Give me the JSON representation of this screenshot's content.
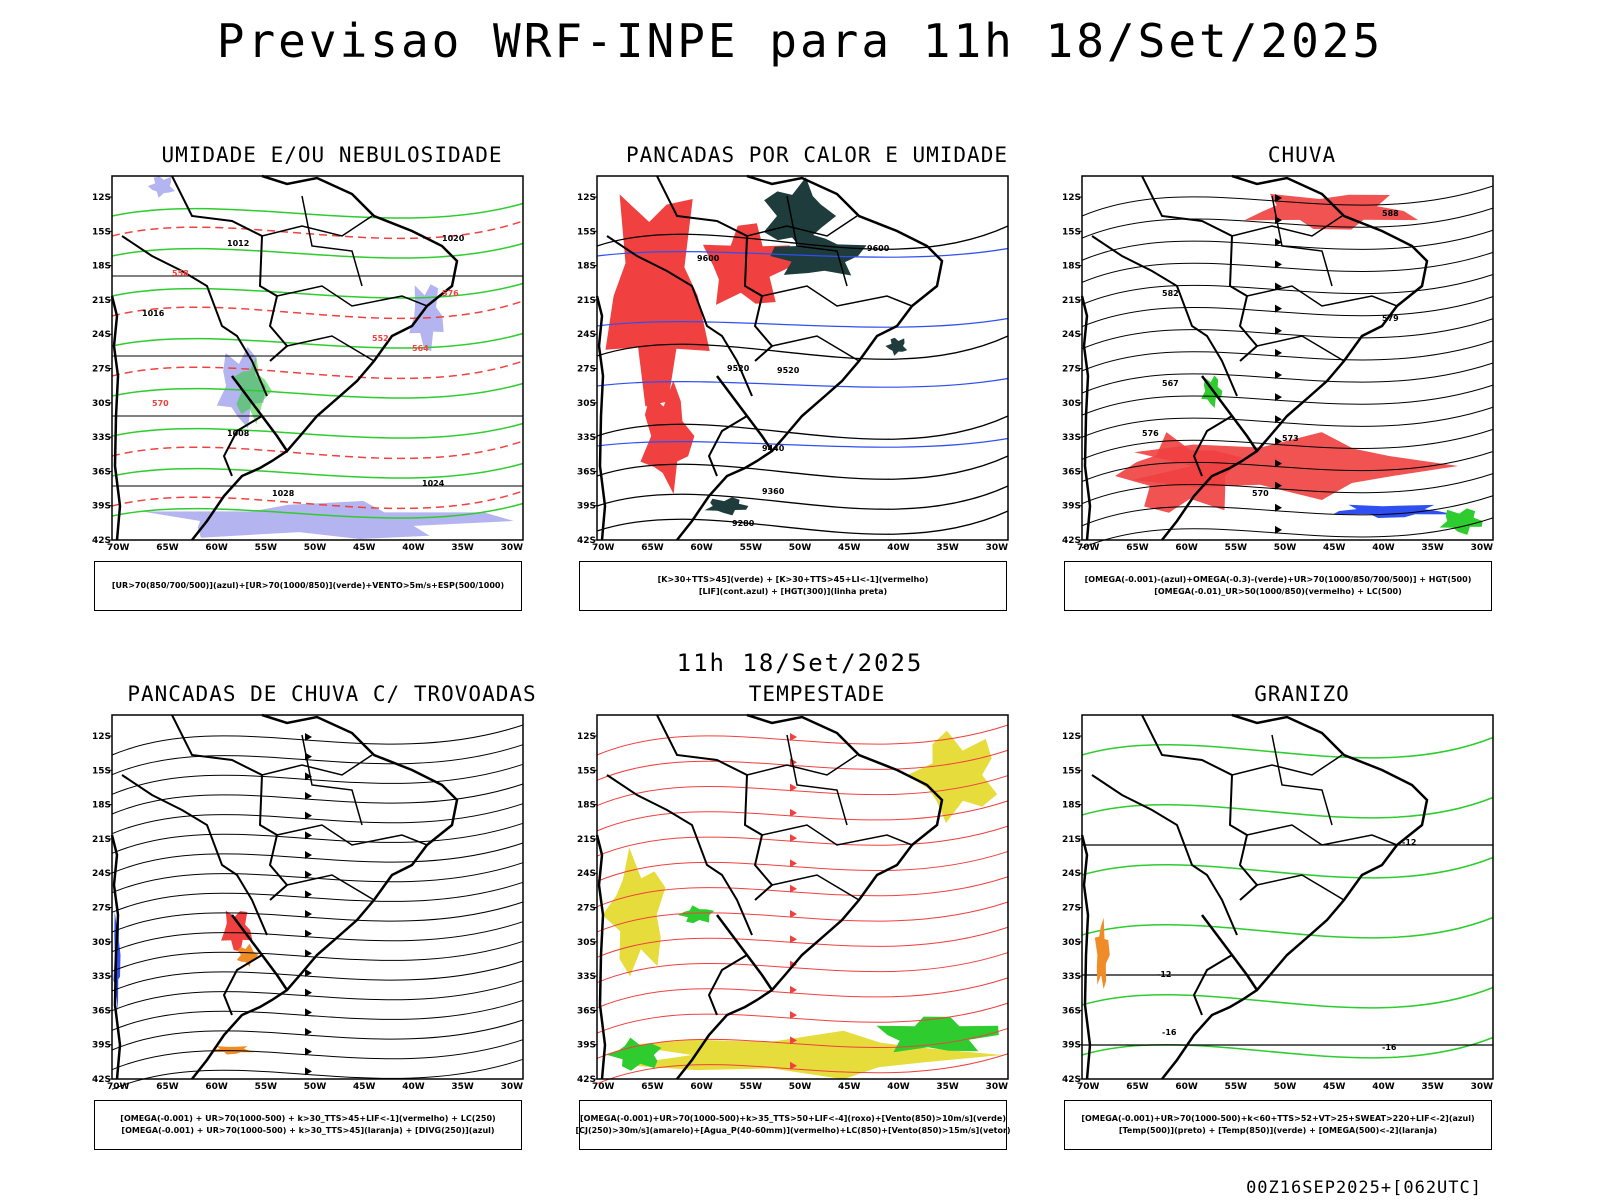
{
  "title": "Previsao WRF-INPE  para 11h 18/Set/2025",
  "middle_title": "11h 18/Set/2025",
  "footer": "00Z16SEP2025+[062UTC]",
  "axes": {
    "lat_labels": [
      "12S",
      "15S",
      "18S",
      "21S",
      "24S",
      "27S",
      "30S",
      "33S",
      "36S",
      "39S",
      "42S"
    ],
    "lon_labels": [
      "70W",
      "65W",
      "60W",
      "55W",
      "50W",
      "45W",
      "40W",
      "35W",
      "30W"
    ]
  },
  "colors": {
    "red": "#f04040",
    "green": "#2ecc2e",
    "blue": "#2f4ff0",
    "lavender": "#b4b4f0",
    "dark_teal": "#1e3c3c",
    "yellow": "#e6dc3c",
    "orange": "#f08c28"
  },
  "panels": [
    {
      "title": "UMIDADE E/OU NEBULOSIDADE",
      "legend": [
        "[UR>70(850/700/500)](azul)+[UR>70(1000/850)](verde)+VENTO>5m/s+ESP(500/1000)"
      ],
      "contour_labels": [
        "1012",
        "1020",
        "1016",
        "1008",
        "1024",
        "1028",
        "570",
        "576",
        "564",
        "558",
        "552"
      ]
    },
    {
      "title": "PANCADAS POR CALOR E UMIDADE",
      "legend": [
        "[K>30+TTS>45](verde) + [K>30+TTS>45+LI<-1](vermelho)",
        "[LIF](cont.azul) + [HGT(300)](linha preta)"
      ],
      "contour_labels": [
        "9600",
        "9520",
        "9440",
        "9360",
        "9280"
      ]
    },
    {
      "title": "CHUVA",
      "legend": [
        "[OMEGA(-0.001)-(azul)+OMEGA(-0.3)-(verde)+UR>70(1000/850/700/500)] + HGT(500)",
        "[OMEGA(-0.01)_UR>50(1000/850)(vermelho) + LC(500)"
      ],
      "contour_labels": [
        "588",
        "582",
        "579",
        "576",
        "573",
        "570",
        "567"
      ]
    },
    {
      "title": "PANCADAS DE CHUVA C/ TROVOADAS",
      "legend": [
        "[OMEGA(-0.001) + UR>70(1000-500) + k>30_TTS>45+LIF<-1](vermelho) + LC(250)",
        "[OMEGA(-0.001) + UR>70(1000-500) + k>30_TTS>45](laranja) + [DIVG(250)](azul)"
      ],
      "contour_labels": []
    },
    {
      "title": "TEMPESTADE",
      "legend": [
        "[OMEGA(-0.001)+UR>70(1000-500)+k>35_TTS>50+LIF<-4](roxo)+[Vento(850)>10m/s](verde)",
        "[CJ(250)>30m/s](amarelo)+[Agua_P(40-60mm)](vermelho)+LC(850)+[Vento(850)>15m/s](vetor)"
      ],
      "contour_labels": []
    },
    {
      "title": "GRANIZO",
      "legend": [
        "[OMEGA(-0.001)+UR>70(1000-500)+k<60+TTS>52+VT>25+SWEAT>220+LIF<-2](azul)",
        "[Temp(500)](preto) + [Temp(850)](verde) + [OMEGA(500)<-2](laranja)"
      ],
      "contour_labels": [
        "-12",
        "-12",
        "-16",
        "-16"
      ]
    }
  ]
}
